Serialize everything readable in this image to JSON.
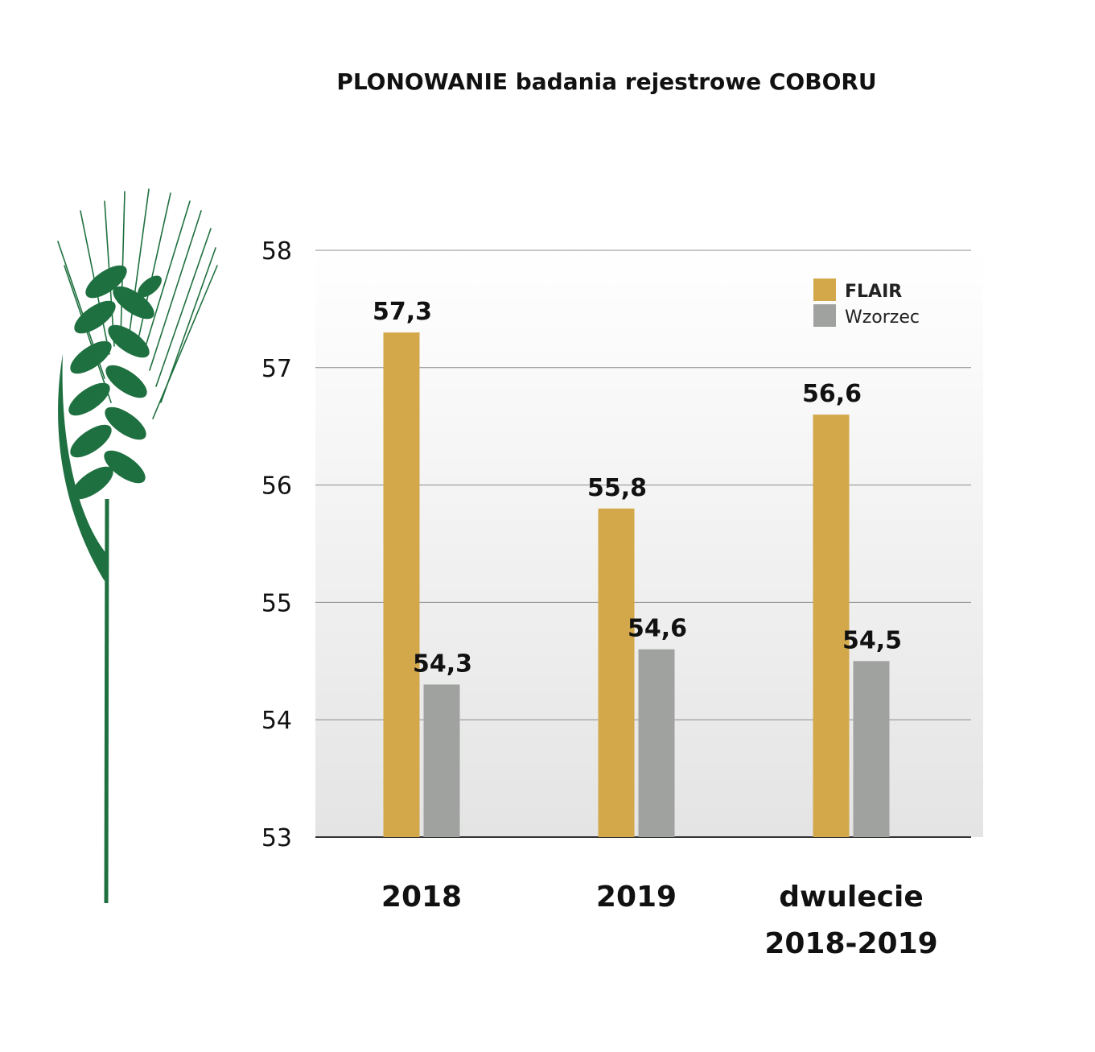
{
  "chart_data": {
    "type": "bar",
    "title": "PLONOWANIE badania rejestrowe COBORU",
    "categories": [
      [
        "2018"
      ],
      [
        "2019"
      ],
      [
        "dwulecie",
        "2018-2019"
      ]
    ],
    "series": [
      {
        "name": "FLAIR",
        "values": [
          57.3,
          55.8,
          56.6
        ],
        "labels": [
          "57,3",
          "55,8",
          "56,6"
        ],
        "color": "#d3a84a"
      },
      {
        "name": "Wzorzec",
        "values": [
          54.3,
          54.6,
          54.5
        ],
        "labels": [
          "54,3",
          "54,6",
          "54,5"
        ],
        "color": "#a0a2a0"
      }
    ],
    "ylim": [
      53,
      58
    ],
    "yticks": [
      53,
      54,
      55,
      56,
      57,
      58
    ],
    "grid": true,
    "legend": "top-right"
  },
  "decor": {
    "wheat_icon": "wheat-ear-icon",
    "wheat_color": "#1f7040"
  }
}
